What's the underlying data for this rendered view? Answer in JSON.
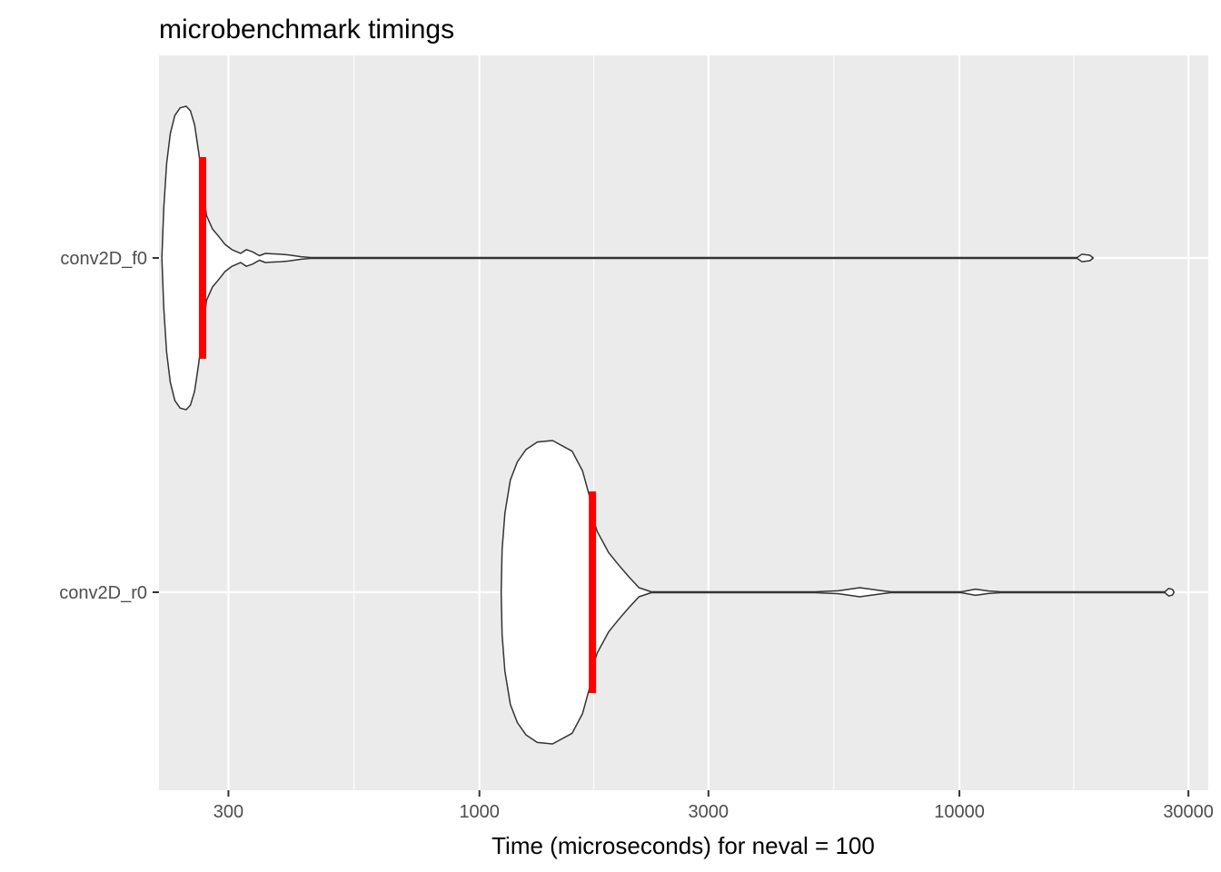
{
  "chart_data": {
    "type": "violin",
    "title": "microbenchmark timings",
    "xlabel": "Time (microseconds) for neval = 100",
    "ylabel": "",
    "x_scale": "log10",
    "xlim": [
      215,
      33000
    ],
    "x_major_ticks": [
      300,
      1000,
      3000,
      10000,
      30000
    ],
    "x_tick_labels": [
      "300",
      "1000",
      "3000",
      "10000",
      "30000"
    ],
    "x_minor_ticks": [
      173,
      548,
      1732,
      5477,
      17321
    ],
    "categories": [
      "conv2D_f0",
      "conv2D_r0"
    ],
    "grid": true,
    "series": [
      {
        "category": "conv2D_f0",
        "median": 265,
        "min": 218,
        "max": 19000,
        "profile": [
          [
            218,
            0
          ],
          [
            220,
            0.33
          ],
          [
            223,
            0.62
          ],
          [
            227,
            0.82
          ],
          [
            232,
            0.94
          ],
          [
            238,
            0.99
          ],
          [
            245,
            1.0
          ],
          [
            250,
            0.97
          ],
          [
            255,
            0.88
          ],
          [
            260,
            0.7
          ],
          [
            265,
            0.5
          ],
          [
            270,
            0.28
          ],
          [
            278,
            0.19
          ],
          [
            285,
            0.15
          ],
          [
            295,
            0.09
          ],
          [
            305,
            0.055
          ],
          [
            318,
            0.03
          ],
          [
            327,
            0.055
          ],
          [
            337,
            0.04
          ],
          [
            348,
            0.015
          ],
          [
            358,
            0.03
          ],
          [
            368,
            0.028
          ],
          [
            385,
            0.025
          ],
          [
            400,
            0.02
          ],
          [
            425,
            0.008
          ],
          [
            445,
            0.003
          ],
          [
            500,
            0.003
          ],
          [
            1000,
            0.003
          ],
          [
            10000,
            0.003
          ],
          [
            17600,
            0.003
          ],
          [
            18000,
            0.025
          ],
          [
            18700,
            0.018
          ],
          [
            19000,
            0.0
          ]
        ]
      },
      {
        "category": "conv2D_r0",
        "median": 1720,
        "min": 1110,
        "max": 28000,
        "profile": [
          [
            1110,
            0
          ],
          [
            1115,
            0.28
          ],
          [
            1130,
            0.52
          ],
          [
            1160,
            0.74
          ],
          [
            1200,
            0.86
          ],
          [
            1250,
            0.94
          ],
          [
            1320,
            0.99
          ],
          [
            1420,
            1.0
          ],
          [
            1560,
            0.93
          ],
          [
            1640,
            0.8
          ],
          [
            1700,
            0.62
          ],
          [
            1720,
            0.5
          ],
          [
            1760,
            0.4
          ],
          [
            1860,
            0.26
          ],
          [
            1950,
            0.18
          ],
          [
            2050,
            0.1
          ],
          [
            2150,
            0.03
          ],
          [
            2280,
            0.003
          ],
          [
            5000,
            0.003
          ],
          [
            5600,
            0.01
          ],
          [
            6200,
            0.03
          ],
          [
            6900,
            0.01
          ],
          [
            7200,
            0.003
          ],
          [
            10100,
            0.003
          ],
          [
            10800,
            0.02
          ],
          [
            11500,
            0.008
          ],
          [
            12200,
            0.003
          ],
          [
            26800,
            0.003
          ],
          [
            27300,
            0.025
          ],
          [
            27800,
            0.018
          ],
          [
            28000,
            0.0
          ]
        ]
      }
    ],
    "colors": {
      "panel": "#ebebeb",
      "grid": "#ffffff",
      "violin_fill": "#ffffff",
      "violin_stroke": "#333333",
      "median": "#ff0000"
    }
  }
}
